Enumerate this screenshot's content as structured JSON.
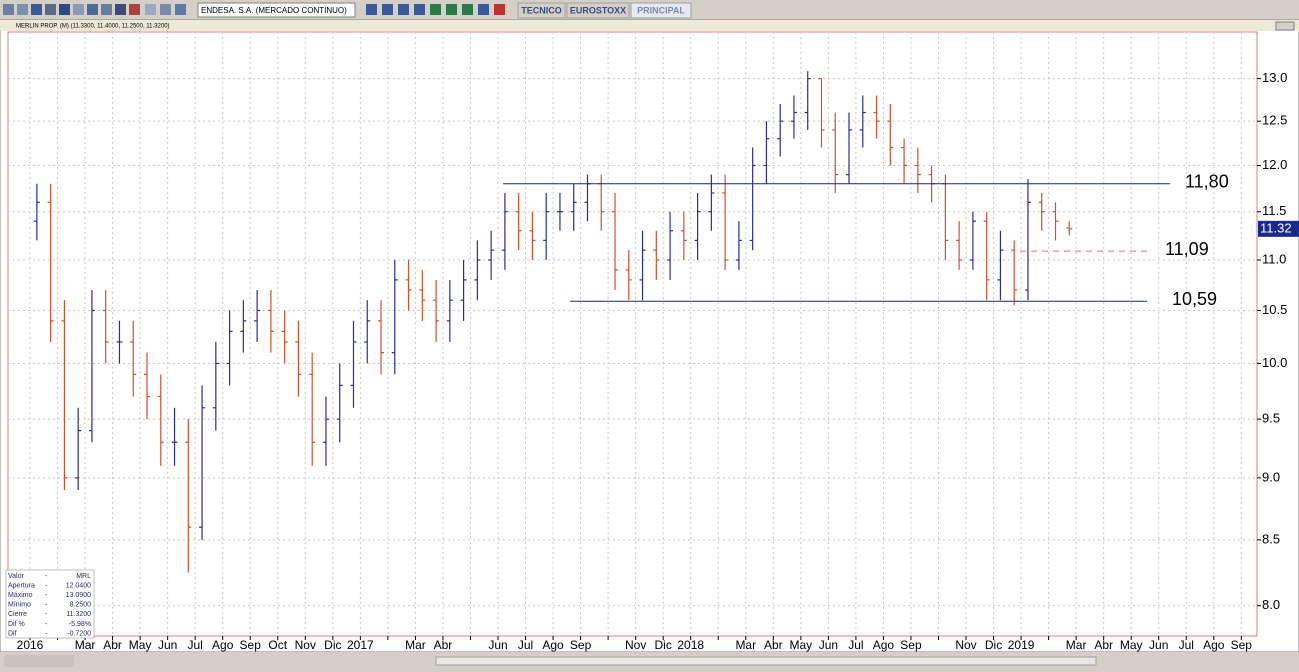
{
  "toolbar": {
    "instrument": "ENDESA. S.A. (MERCADO CONTINUO)",
    "tabs": [
      "TECNICO",
      "EUROSTOXX",
      "PRINCIPAL"
    ]
  },
  "chart_data": {
    "type": "ohlc",
    "title": "MERLIN PROP. (M) (11.3300, 11.4000, 11.2500, 11.3200)",
    "log_scale": true,
    "grid": true,
    "up_color": "#2c2c9c",
    "down_color": "#d4502c",
    "categories": [
      "2016",
      null,
      "Mar",
      "Abr",
      "May",
      "Jun",
      "Jul",
      "Ago",
      "Sep",
      "Oct",
      "Nov",
      "Dic",
      "2017",
      null,
      "Mar",
      "Abr",
      null,
      "Jun",
      "Jul",
      "Ago",
      "Sep",
      null,
      "Nov",
      "Dic",
      "2018",
      null,
      "Mar",
      "Abr",
      "May",
      "Jun",
      "Jul",
      "Ago",
      "Sep",
      null,
      "Nov",
      "Dic",
      "2019",
      null,
      "Mar",
      "Abr",
      "May",
      "Jun",
      "Jul",
      "Ago",
      "Sep"
    ],
    "bars": [
      [
        11.4,
        11.8,
        11.2,
        11.6
      ],
      [
        11.6,
        11.8,
        10.2,
        10.4
      ],
      [
        10.4,
        10.6,
        8.9,
        9.0
      ],
      [
        9.0,
        9.6,
        8.9,
        9.4
      ],
      [
        9.4,
        10.7,
        9.3,
        10.5
      ],
      [
        10.5,
        10.7,
        10.0,
        10.2
      ],
      [
        10.2,
        10.4,
        10.0,
        10.2
      ],
      [
        10.2,
        10.4,
        9.7,
        9.9
      ],
      [
        9.9,
        10.1,
        9.5,
        9.7
      ],
      [
        9.7,
        9.9,
        9.1,
        9.3
      ],
      [
        9.3,
        9.6,
        9.1,
        9.3
      ],
      [
        9.3,
        9.5,
        8.25,
        8.6
      ],
      [
        8.6,
        9.8,
        8.5,
        9.6
      ],
      [
        9.6,
        10.2,
        9.4,
        10.0
      ],
      [
        10.0,
        10.5,
        9.8,
        10.3
      ],
      [
        10.3,
        10.6,
        10.1,
        10.4
      ],
      [
        10.4,
        10.7,
        10.2,
        10.5
      ],
      [
        10.5,
        10.7,
        10.1,
        10.3
      ],
      [
        10.3,
        10.5,
        10.0,
        10.2
      ],
      [
        10.2,
        10.4,
        9.7,
        9.9
      ],
      [
        9.9,
        10.1,
        9.1,
        9.3
      ],
      [
        9.3,
        9.7,
        9.1,
        9.5
      ],
      [
        9.5,
        10.0,
        9.3,
        9.8
      ],
      [
        9.8,
        10.4,
        9.6,
        10.2
      ],
      [
        10.2,
        10.6,
        10.0,
        10.4
      ],
      [
        10.4,
        10.6,
        9.9,
        10.1
      ],
      [
        10.1,
        11.0,
        9.9,
        10.8
      ],
      [
        10.8,
        11.0,
        10.5,
        10.7
      ],
      [
        10.7,
        10.9,
        10.4,
        10.6
      ],
      [
        10.6,
        10.8,
        10.2,
        10.4
      ],
      [
        10.4,
        10.8,
        10.2,
        10.6
      ],
      [
        10.6,
        11.0,
        10.4,
        10.8
      ],
      [
        10.8,
        11.2,
        10.6,
        11.0
      ],
      [
        11.0,
        11.3,
        10.8,
        11.1
      ],
      [
        11.1,
        11.7,
        10.9,
        11.5
      ],
      [
        11.5,
        11.7,
        11.1,
        11.3
      ],
      [
        11.3,
        11.5,
        11.0,
        11.2
      ],
      [
        11.2,
        11.7,
        11.0,
        11.5
      ],
      [
        11.5,
        11.7,
        11.3,
        11.5
      ],
      [
        11.5,
        11.8,
        11.3,
        11.6
      ],
      [
        11.6,
        11.9,
        11.4,
        11.8
      ],
      [
        11.8,
        11.9,
        11.3,
        11.5
      ],
      [
        11.5,
        11.7,
        10.7,
        10.9
      ],
      [
        10.9,
        11.1,
        10.6,
        10.8
      ],
      [
        10.8,
        11.3,
        10.6,
        11.1
      ],
      [
        11.1,
        11.3,
        10.8,
        11.0
      ],
      [
        11.0,
        11.5,
        10.8,
        11.3
      ],
      [
        11.3,
        11.5,
        11.0,
        11.2
      ],
      [
        11.2,
        11.7,
        11.0,
        11.5
      ],
      [
        11.5,
        11.9,
        11.3,
        11.7
      ],
      [
        11.7,
        11.9,
        10.9,
        11.0
      ],
      [
        11.0,
        11.4,
        10.9,
        11.2
      ],
      [
        11.2,
        12.2,
        11.1,
        12.0
      ],
      [
        12.0,
        12.5,
        11.8,
        12.3
      ],
      [
        12.3,
        12.7,
        12.1,
        12.5
      ],
      [
        12.5,
        12.8,
        12.3,
        12.6
      ],
      [
        12.6,
        13.09,
        12.4,
        13.0
      ],
      [
        13.0,
        13.0,
        12.2,
        12.4
      ],
      [
        12.4,
        12.6,
        11.7,
        11.9
      ],
      [
        11.9,
        12.6,
        11.8,
        12.4
      ],
      [
        12.4,
        12.8,
        12.2,
        12.6
      ],
      [
        12.6,
        12.8,
        12.3,
        12.5
      ],
      [
        12.5,
        12.7,
        12.0,
        12.2
      ],
      [
        12.2,
        12.3,
        11.8,
        12.0
      ],
      [
        12.0,
        12.2,
        11.7,
        11.9
      ],
      [
        11.9,
        12.0,
        11.6,
        11.8
      ],
      [
        11.8,
        11.9,
        11.0,
        11.2
      ],
      [
        11.2,
        11.4,
        10.9,
        11.0
      ],
      [
        11.0,
        11.5,
        10.9,
        11.4
      ],
      [
        11.4,
        11.5,
        10.6,
        10.8
      ],
      [
        10.8,
        11.3,
        10.6,
        11.1
      ],
      [
        11.1,
        11.2,
        10.55,
        10.7
      ],
      [
        10.7,
        11.85,
        10.6,
        11.6
      ],
      [
        11.6,
        11.7,
        11.3,
        11.5
      ],
      [
        11.5,
        11.6,
        11.2,
        11.4
      ],
      [
        11.33,
        11.4,
        11.25,
        11.32
      ]
    ],
    "ylim": [
      7.78,
      13.57
    ],
    "yticks": [
      {
        "value": 8.0,
        "label": "8.0"
      },
      {
        "value": 8.5,
        "label": "8.5"
      },
      {
        "value": 9.0,
        "label": "9.0"
      },
      {
        "value": 9.5,
        "label": "9.5"
      },
      {
        "value": 10.0,
        "label": "10.0"
      },
      {
        "value": 10.5,
        "label": "10.5"
      },
      {
        "value": 11.0,
        "label": "11.0"
      },
      {
        "value": 11.5,
        "label": "11.5"
      },
      {
        "value": 12.0,
        "label": "12.0"
      },
      {
        "value": 12.5,
        "label": "12.5"
      },
      {
        "value": 13.0,
        "label": "13.0"
      }
    ],
    "levels": [
      {
        "value": 11.8,
        "label": "11,80",
        "color": "#1a2a6c"
      },
      {
        "value": 11.09,
        "label": "11,09",
        "color": "#e87070"
      },
      {
        "value": 10.59,
        "label": "10,59",
        "color": "#1a2a6c"
      }
    ],
    "last_price": {
      "value": 11.32,
      "label": "11.32"
    },
    "info": [
      [
        "Valor",
        "-",
        "MRL"
      ],
      [
        "Apertura",
        "-",
        "12.0400"
      ],
      [
        "Máximo",
        "-",
        "13.0900"
      ],
      [
        "Mínimo",
        "-",
        "8.2500"
      ],
      [
        "Cierre",
        "-",
        "11.3200"
      ],
      [
        "Dif %",
        "-",
        "-5.98%"
      ],
      [
        "Dif",
        "-",
        "-0.7200"
      ]
    ]
  }
}
